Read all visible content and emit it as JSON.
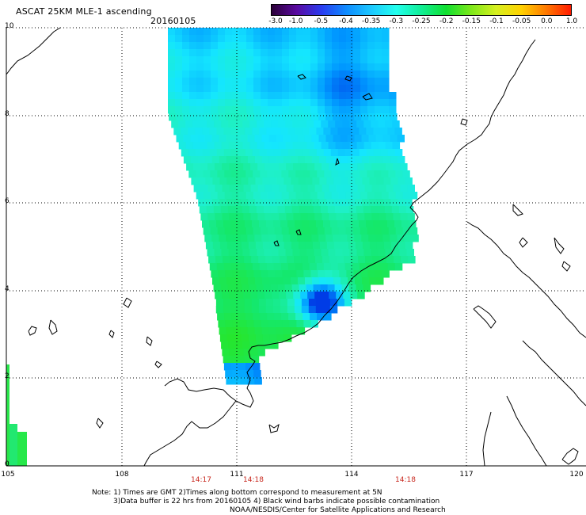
{
  "header": {
    "title": "ASCAT 25KM MLE-1 ascending",
    "date": "20160105"
  },
  "colorbar": {
    "labels": [
      "-3.0",
      "-1.0",
      "-0.5",
      "-0.4",
      "-0.35",
      "-0.3",
      "-0.25",
      "-0.2",
      "-0.15",
      "-0.1",
      "-0.05",
      "0.0",
      "1.0"
    ],
    "colors": [
      "#2b0038",
      "#5a0aa0",
      "#2a3cf0",
      "#0f8cff",
      "#1cc8ff",
      "#22ffee",
      "#10ee95",
      "#10e030",
      "#7de81a",
      "#d6f020",
      "#ffd200",
      "#ff7a00",
      "#ff1a00"
    ]
  },
  "axes": {
    "lat_labels": [
      "10",
      "8",
      "6",
      "4",
      "2",
      "0"
    ],
    "lon_labels": [
      "105",
      "108",
      "111",
      "114",
      "117",
      "120"
    ]
  },
  "time_labels": [
    "14:17",
    "14:18",
    "14:18"
  ],
  "notes": [
    "Note: 1) Times are GMT 2)Times along bottom correspond to measurement at 5N",
    "3)Data buffer is 22 hrs from 20160105 4) Black wind barbs indicate possible contamination",
    "NOAA/NESDIS/Center for Satellite Applications and Research"
  ],
  "style": {
    "time_label_color": "#c8281e",
    "grid_color": "#000000",
    "coastline_color": "#000000"
  }
}
